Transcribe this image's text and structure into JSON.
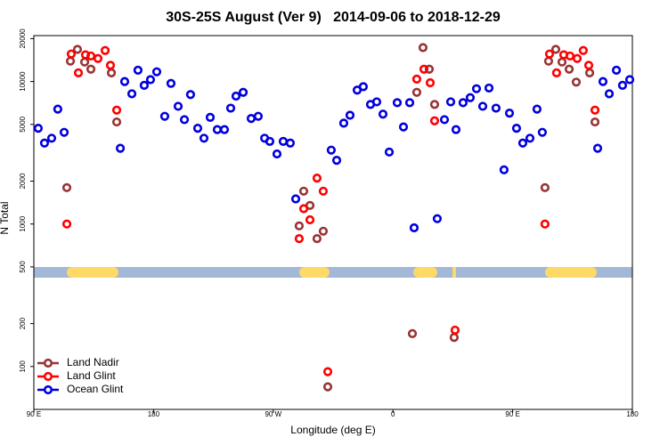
{
  "chart_data": {
    "type": "scatter",
    "title": "30S-25S August (Ver 9)   2014-09-06 to 2018-12-29",
    "x_label": "Longitude (deg E)",
    "y_label": "N Total",
    "log_scale": true,
    "legend": "bottomleft",
    "xlim": [
      90,
      540
    ],
    "xticks": [
      {
        "value": 90,
        "label": "90 E"
      },
      {
        "value": 180,
        "label": "180"
      },
      {
        "value": 270,
        "label": "90 W"
      },
      {
        "value": 360,
        "label": "0"
      },
      {
        "value": 450,
        "label": "90 E"
      },
      {
        "value": 540,
        "label": "180"
      }
    ],
    "ylim": [
      50,
      21000
    ],
    "yticks": [
      100,
      200,
      500,
      1000,
      2000,
      5000,
      10000,
      20000
    ],
    "series": [
      {
        "name": "Land Nadir",
        "color": "#993333",
        "x": [
          117.5,
          122.8,
          128.2,
          132.9,
          148.3,
          152.3,
          114.8,
          292.9,
          297.6,
          289.5,
          302.9,
          307.6,
          311,
          374.6,
          406,
          377.9,
          382.6,
          387.3,
          391.3,
          477,
          482.4,
          487.1,
          492.5,
          497.8,
          507.9,
          511.9,
          474.3
        ],
        "values": [
          13900,
          16800,
          13700,
          12200,
          11500,
          5200,
          1800,
          1700,
          1350,
          970,
          790,
          890,
          72,
          170,
          160,
          8400,
          17300,
          12200,
          6900,
          13900,
          16800,
          13700,
          12200,
          9900,
          11500,
          5200,
          1800
        ]
      },
      {
        "name": "Land Glint",
        "color": "#ff0000",
        "x": [
          118.1,
          123.5,
          128.8,
          132.9,
          138.2,
          143.6,
          147.6,
          152.3,
          114.8,
          289.5,
          292.9,
          297.6,
          302.9,
          307.6,
          311,
          377.9,
          383.3,
          388,
          391.3,
          406.7,
          477.7,
          483,
          488.4,
          493.1,
          498.5,
          503.1,
          507.2,
          511.9,
          474.3
        ],
        "values": [
          15600,
          11500,
          15400,
          15100,
          14500,
          16500,
          13000,
          6300,
          1000,
          790,
          1280,
          1070,
          2100,
          1700,
          92,
          10400,
          12200,
          9800,
          5300,
          180,
          15600,
          11500,
          15400,
          15100,
          14500,
          16500,
          13000,
          6300,
          1000
        ]
      },
      {
        "name": "Ocean Glint",
        "color": "#0000dd",
        "x": [
          93.3,
          98,
          103.4,
          108,
          112.8,
          155,
          158.3,
          163.7,
          168.3,
          173,
          177.7,
          182.4,
          188.4,
          193.1,
          198.5,
          203.2,
          207.8,
          213.2,
          217.9,
          222.6,
          227.9,
          233.3,
          238,
          242,
          247.4,
          253.4,
          258.7,
          263.5,
          267.4,
          272.8,
          277.5,
          282.8,
          286.9,
          313.6,
          317.7,
          323,
          327.7,
          333.1,
          337.7,
          343.1,
          347.8,
          352.5,
          357.2,
          363.2,
          367.9,
          372.6,
          375.9,
          393.3,
          398.7,
          403.4,
          407.4,
          412.7,
          418.1,
          422.8,
          427.5,
          432.2,
          437.5,
          443.5,
          447.6,
          452.9,
          457.6,
          463,
          468.3,
          472.3,
          513.9,
          517.9,
          522.6,
          528,
          532.6,
          538
        ],
        "values": [
          4700,
          3700,
          4000,
          6400,
          4400,
          3400,
          10000,
          8200,
          12000,
          9400,
          10300,
          11700,
          5700,
          9700,
          6700,
          5400,
          8100,
          4700,
          4000,
          5600,
          4600,
          4600,
          6500,
          7900,
          8400,
          5500,
          5700,
          4000,
          3800,
          3100,
          3800,
          3700,
          1500,
          3300,
          2800,
          5100,
          5800,
          8700,
          9200,
          6900,
          7200,
          5900,
          3200,
          7100,
          4800,
          7100,
          940,
          1090,
          5400,
          7200,
          4600,
          7100,
          7700,
          8900,
          6700,
          9000,
          6500,
          2400,
          6000,
          4700,
          3700,
          4000,
          6400,
          4400,
          3400,
          10000,
          8200,
          12000,
          9400,
          10300
        ]
      }
    ]
  }
}
